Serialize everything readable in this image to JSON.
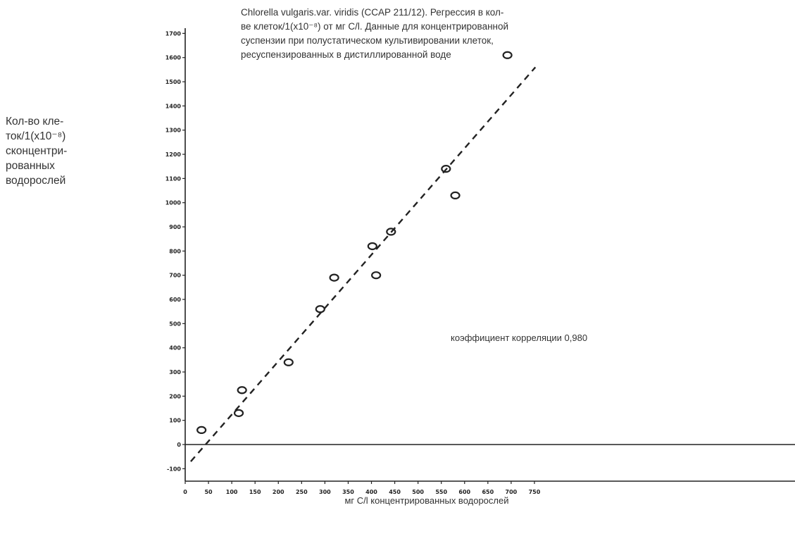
{
  "chart_data": {
    "type": "scatter",
    "title_lines": [
      "Chlorella vulgaris.var. viridis (CCAP 211/12). Регрессия в кол-",
      "ве клеток/1(x10⁻⁸) от мг С/l. Данные для концентрированной",
      "суспензии при полустатическом культивировании клеток,",
      "ресуспензированных в дистиллированной воде"
    ],
    "ylabel_lines": [
      "Кол-во кле-",
      "ток/1(x10⁻⁸)",
      "сконцентри-",
      "рованных",
      "водорослей"
    ],
    "xlabel": "мг С/l концентрированных водорослей",
    "annotation": "коэффициент корреляции 0,980",
    "x_ticks": [
      "0",
      "50",
      "100",
      "150",
      "200",
      "250",
      "300",
      "350",
      "400",
      "450",
      "500",
      "550",
      "600",
      "650",
      "700",
      "750"
    ],
    "y_ticks": [
      "-100",
      "0",
      "100",
      "200",
      "300",
      "400",
      "500",
      "600",
      "700",
      "800",
      "900",
      "1000",
      "1100",
      "1200",
      "1300",
      "1400",
      "1500",
      "1600",
      "1700"
    ],
    "xlim": [
      0,
      790
    ],
    "ylim": [
      -150,
      1700
    ],
    "points": [
      {
        "x": 35,
        "y": 60
      },
      {
        "x": 115,
        "y": 130
      },
      {
        "x": 122,
        "y": 225
      },
      {
        "x": 222,
        "y": 340
      },
      {
        "x": 290,
        "y": 560
      },
      {
        "x": 320,
        "y": 690
      },
      {
        "x": 402,
        "y": 820
      },
      {
        "x": 410,
        "y": 700
      },
      {
        "x": 442,
        "y": 880
      },
      {
        "x": 560,
        "y": 1140
      },
      {
        "x": 580,
        "y": 1030
      },
      {
        "x": 692,
        "y": 1610
      }
    ],
    "regression": {
      "x1": 12,
      "y1": -70,
      "x2": 752,
      "y2": 1560
    },
    "grid": false,
    "marker": "open-circle",
    "color": "#222222"
  }
}
